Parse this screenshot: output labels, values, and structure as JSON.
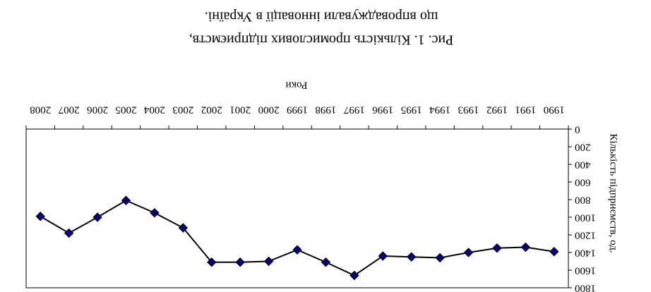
{
  "chart_data": {
    "type": "line",
    "title": "Рис. 1. Кількість промислових підприємств,",
    "subtitle": "що впроваджували інновації в Україні.",
    "x_label": "Роки",
    "y_label": "Кількість підприємств, од.",
    "categories": [
      "1990",
      "1991",
      "1992",
      "1993",
      "1994",
      "1995",
      "1996",
      "1997",
      "1998",
      "1999",
      "2000",
      "2001",
      "2002",
      "2003",
      "2004",
      "2005",
      "2006",
      "2007",
      "2008"
    ],
    "series": [
      {
        "name": "Кількість підприємств",
        "color": "#000080",
        "values": [
          1390,
          1340,
          1350,
          1400,
          1460,
          1450,
          1440,
          1660,
          1510,
          1370,
          1500,
          1510,
          1510,
          1120,
          950,
          810,
          1000,
          1180,
          990
        ]
      }
    ],
    "ylim": [
      0,
      1800
    ],
    "yticks": [
      0,
      200,
      400,
      600,
      800,
      1000,
      1200,
      1400,
      1600,
      1800
    ],
    "y_reversed": true
  }
}
